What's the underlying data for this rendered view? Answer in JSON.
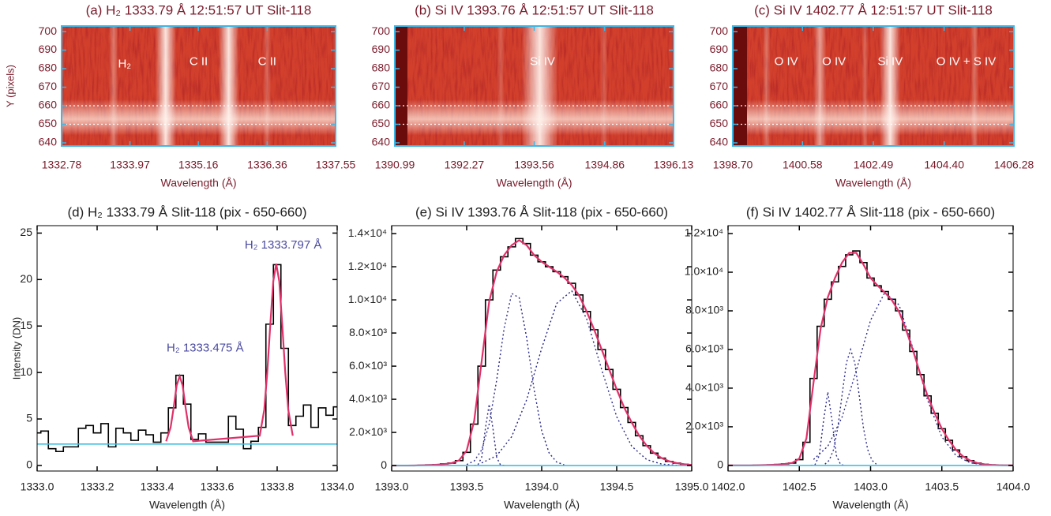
{
  "chart_data": [
    {
      "type": "spectrogram",
      "title": "(a) H₂ 1333.79 Å 12:51:57 UT Slit-118",
      "xlabel": "Wavelength (Å)",
      "ylabel": "Y (pixels)",
      "xlim": [
        1332.78,
        1337.55
      ],
      "xticks": [
        1332.78,
        1333.97,
        1335.16,
        1336.36,
        1337.55
      ],
      "ylim": [
        638.3,
        703
      ],
      "yticks": [
        640,
        650,
        660,
        670,
        680,
        690,
        700
      ],
      "hlines": [
        650,
        660
      ],
      "annotations": [
        "H₂",
        "C II",
        "C II"
      ]
    },
    {
      "type": "spectrogram",
      "title": "(b) Si IV 1393.76 Å 12:51:57 UT Slit-118",
      "xlabel": "Wavelength (Å)",
      "xlim": [
        1390.99,
        1396.13
      ],
      "xticks": [
        1390.99,
        1392.27,
        1393.56,
        1394.86,
        1396.13
      ],
      "ylim": [
        638.3,
        703
      ],
      "yticks": [
        640,
        650,
        660,
        670,
        680,
        690,
        700
      ],
      "hlines": [
        650,
        660
      ],
      "annotations": [
        "Si IV"
      ]
    },
    {
      "type": "spectrogram",
      "title": "(c) Si IV 1402.77 Å 12:51:57 UT Slit-118",
      "xlabel": "Wavelength (Å)",
      "xlim": [
        1398.7,
        1406.28
      ],
      "xticks": [
        {
          "value": 1398.7,
          "label": "1398.70"
        },
        1400.58,
        1402.49,
        {
          "value": 1404.4,
          "label": "1404.40"
        },
        1406.28
      ],
      "ylim": [
        638.3,
        703
      ],
      "yticks": [
        640,
        650,
        660,
        670,
        680,
        690,
        700
      ],
      "hlines": [
        650,
        660
      ],
      "annotations": [
        "O IV",
        "O IV",
        "Si IV",
        "O IV + S IV"
      ]
    },
    {
      "type": "line",
      "title": "(d) H₂ 1333.79 Å Slit-118 (pix - 650-660)",
      "xlabel": "Wavelength (Å)",
      "ylabel": "Intensity (DN)",
      "xlim": [
        1333.0,
        1334.0
      ],
      "xticks": [
        {
          "value": 1333,
          "label": "1333.0"
        },
        1333.2,
        1333.4,
        1333.6,
        1333.8,
        {
          "value": 1334,
          "label": "1334.0"
        }
      ],
      "ylim": [
        -0.6,
        25.8
      ],
      "yticks": [
        0,
        5,
        10,
        15,
        20,
        25
      ],
      "annotations": [
        "H₂ 1333.797 Å",
        "H₂ 1333.475 Å"
      ],
      "series": [
        {
          "style": "step",
          "color": "#000000",
          "x": [
            1333,
            1333.025,
            1333.05,
            1333.075,
            1333.1,
            1333.125,
            1333.15,
            1333.175,
            1333.2,
            1333.225,
            1333.25,
            1333.275,
            1333.3,
            1333.325,
            1333.35,
            1333.375,
            1333.4,
            1333.425,
            1333.45,
            1333.475,
            1333.5,
            1333.525,
            1333.55,
            1333.575,
            1333.6,
            1333.625,
            1333.65,
            1333.675,
            1333.7,
            1333.725,
            1333.75,
            1333.775,
            1333.8,
            1333.825,
            1333.85,
            1333.875,
            1333.9,
            1333.925,
            1333.95,
            1333.975,
            1334
          ],
          "values": [
            3.5,
            3.7,
            1.8,
            1.5,
            2.0,
            2.0,
            4.0,
            4.3,
            3.5,
            4.5,
            2.0,
            4.0,
            3.5,
            2.7,
            3.8,
            3.3,
            2.5,
            3.5,
            6.2,
            9.7,
            6.6,
            2.8,
            3.4,
            2.5,
            2.5,
            2.5,
            5.3,
            3.9,
            1.8,
            2.6,
            4.1,
            15.2,
            21.6,
            12.6,
            4.3,
            5.3,
            6.5,
            4.1,
            6.2,
            5.4,
            6.3
          ]
        },
        {
          "style": "solid",
          "color": "#e0306a",
          "x": [
            1333.43,
            1333.445,
            1333.455,
            1333.465,
            1333.475,
            1333.485,
            1333.495,
            1333.505,
            1333.52,
            1333.742,
            1333.757,
            1333.767,
            1333.777,
            1333.787,
            1333.797,
            1333.807,
            1333.817,
            1333.827,
            1333.837,
            1333.852
          ],
          "values": [
            2.6,
            4.1,
            6.2,
            8.6,
            9.6,
            8.6,
            6.2,
            4.1,
            2.6,
            3.2,
            6.0,
            10.0,
            15.1,
            19.8,
            21.7,
            19.8,
            15.1,
            10.0,
            6.0,
            3.2
          ]
        },
        {
          "style": "solid",
          "color": "#3cc0e0",
          "x": [
            1333.0,
            1334.0
          ],
          "values": [
            2.3,
            2.3
          ]
        }
      ]
    },
    {
      "type": "line",
      "title": "(e) Si IV 1393.76 Å Slit-118 (pix - 650-660)",
      "xlabel": "Wavelength (Å)",
      "xlim": [
        1393.0,
        1395.0
      ],
      "xticks": [
        {
          "value": 1393,
          "label": "1393.0"
        },
        1393.5,
        {
          "value": 1394,
          "label": "1394.0"
        },
        1394.5,
        {
          "value": 1395,
          "label": "1395.0"
        }
      ],
      "ylim": [
        -330,
        14480
      ],
      "yticks": [
        0,
        {
          "value": 2000,
          "label": "2.0×10³"
        },
        {
          "value": 4000,
          "label": "4.0×10³"
        },
        {
          "value": 6000,
          "label": "6.0×10³"
        },
        {
          "value": 8000,
          "label": "8.0×10³"
        },
        {
          "value": 10000,
          "label": "1.0×10⁴"
        },
        {
          "value": 12000,
          "label": "1.2×10⁴"
        },
        {
          "value": 14000,
          "label": "1.4×10⁴"
        }
      ],
      "series": [
        {
          "style": "step",
          "color": "#000000",
          "x": [
            1393,
            1393.05,
            1393.1,
            1393.15,
            1393.2,
            1393.25,
            1393.3,
            1393.35,
            1393.4,
            1393.45,
            1393.5,
            1393.55,
            1393.6,
            1393.65,
            1393.7,
            1393.75,
            1393.8,
            1393.85,
            1393.9,
            1393.95,
            1394,
            1394.05,
            1394.1,
            1394.15,
            1394.2,
            1394.25,
            1394.3,
            1394.35,
            1394.4,
            1394.45,
            1394.5,
            1394.55,
            1394.6,
            1394.65,
            1394.7,
            1394.75,
            1394.8,
            1394.85,
            1394.9,
            1394.95,
            1395
          ],
          "values": [
            0,
            0,
            0,
            10,
            20,
            40,
            60,
            100,
            150,
            300,
            800,
            2500,
            6000,
            10000,
            11800,
            12600,
            13200,
            13700,
            13400,
            12700,
            12300,
            12000,
            11700,
            11400,
            11000,
            10300,
            9300,
            8200,
            7000,
            5800,
            4600,
            3500,
            2600,
            1800,
            1200,
            750,
            450,
            250,
            150,
            80,
            50
          ]
        },
        {
          "style": "dotted",
          "color": "#2a2a8a",
          "x": [
            1393.55,
            1393.575,
            1393.6,
            1393.625,
            1393.65,
            1393.675,
            1393.7,
            1393.725,
            1393.75
          ],
          "values": [
            1,
            41,
            500,
            2245,
            3700,
            2245,
            500,
            41,
            1
          ]
        },
        {
          "style": "dotted",
          "color": "#2a2a8a",
          "x": [
            1393.5,
            1393.55,
            1393.6,
            1393.65,
            1393.7,
            1393.75,
            1393.8,
            1393.85,
            1393.9,
            1393.95,
            1394.0,
            1394.05,
            1394.1,
            1394.15
          ],
          "values": [
            64,
            276,
            943,
            2500,
            5165,
            8300,
            10390,
            10130,
            7700,
            4560,
            2100,
            750,
            210,
            46
          ]
        },
        {
          "style": "dotted",
          "color": "#2a2a8a",
          "x": [
            1393.6,
            1393.7,
            1393.8,
            1393.9,
            1394.0,
            1394.1,
            1394.2,
            1394.3,
            1394.4,
            1394.5,
            1394.6,
            1394.7,
            1394.8,
            1394.9
          ],
          "values": [
            158,
            597,
            1742,
            3978,
            7075,
            9784,
            10547,
            8855,
            5789,
            2945,
            1170,
            359,
            87,
            17
          ]
        },
        {
          "style": "solid",
          "color": "#e0306a",
          "x": [
            1393,
            1393.05,
            1393.1,
            1393.15,
            1393.2,
            1393.25,
            1393.3,
            1393.35,
            1393.4,
            1393.45,
            1393.5,
            1393.55,
            1393.6,
            1393.65,
            1393.7,
            1393.75,
            1393.8,
            1393.85,
            1393.9,
            1393.95,
            1394,
            1394.05,
            1394.1,
            1394.15,
            1394.2,
            1394.25,
            1394.3,
            1394.35,
            1394.4,
            1394.45,
            1394.5,
            1394.55,
            1394.6,
            1394.65,
            1394.7,
            1394.75,
            1394.8,
            1394.85,
            1394.9,
            1394.95,
            1395
          ],
          "values": [
            0,
            0,
            0,
            5,
            15,
            30,
            55,
            90,
            150,
            320,
            900,
            2700,
            6300,
            9900,
            11700,
            12700,
            13300,
            13600,
            13300,
            12700,
            12300,
            12000,
            11700,
            11350,
            10900,
            10250,
            9300,
            8200,
            7000,
            5800,
            4600,
            3500,
            2600,
            1800,
            1200,
            750,
            450,
            260,
            150,
            80,
            40
          ]
        },
        {
          "style": "solid",
          "color": "#3cc0e0",
          "x": [
            1393.0,
            1395.0
          ],
          "values": [
            0,
            0
          ]
        }
      ]
    },
    {
      "type": "line",
      "title": "(f) Si IV 1402.77 Å Slit-118 (pix - 650-660)",
      "xlabel": "Wavelength (Å)",
      "xlim": [
        1402.0,
        1404.0
      ],
      "xticks": [
        {
          "value": 1402,
          "label": "1402.0"
        },
        1402.5,
        {
          "value": 1403,
          "label": "1403.0"
        },
        1403.5,
        {
          "value": 1404,
          "label": "1404.0"
        }
      ],
      "ylim": [
        -290,
        12410
      ],
      "yticks": [
        0,
        {
          "value": 2000,
          "label": "2.0×10³"
        },
        {
          "value": 4000,
          "label": "4.0×10³"
        },
        {
          "value": 6000,
          "label": "6.0×10³"
        },
        {
          "value": 8000,
          "label": "8.0×10³"
        },
        {
          "value": 10000,
          "label": "1.0×10⁴"
        },
        {
          "value": 12000,
          "label": "1.2×10⁴"
        }
      ],
      "series": [
        {
          "style": "step",
          "color": "#000000",
          "x": [
            1402,
            1402.05,
            1402.1,
            1402.15,
            1402.2,
            1402.25,
            1402.3,
            1402.35,
            1402.4,
            1402.45,
            1402.5,
            1402.55,
            1402.6,
            1402.65,
            1402.7,
            1402.75,
            1402.8,
            1402.85,
            1402.9,
            1402.95,
            1403,
            1403.05,
            1403.1,
            1403.15,
            1403.2,
            1403.25,
            1403.3,
            1403.35,
            1403.4,
            1403.45,
            1403.5,
            1403.55,
            1403.6,
            1403.65,
            1403.7,
            1403.75,
            1403.8,
            1403.85,
            1403.9,
            1403.95,
            1404
          ],
          "values": [
            0,
            0,
            0,
            0,
            10,
            20,
            30,
            50,
            80,
            120,
            300,
            1200,
            4500,
            7200,
            8600,
            9500,
            10300,
            10900,
            11100,
            10500,
            9700,
            9300,
            9000,
            8600,
            8000,
            7000,
            5900,
            4700,
            3600,
            2700,
            1900,
            1300,
            800,
            450,
            250,
            120,
            60,
            30,
            10,
            5,
            0
          ]
        },
        {
          "style": "dotted",
          "color": "#2a2a8a",
          "x": [
            1402.58,
            1402.61,
            1402.64,
            1402.67,
            1402.7,
            1402.73,
            1402.76,
            1402.79,
            1402.82
          ],
          "values": [
            1,
            42,
            514,
            2306,
            3800,
            2306,
            514,
            42,
            1
          ]
        },
        {
          "style": "dotted",
          "color": "#2a2a8a",
          "x": [
            1402.68,
            1402.71,
            1402.74,
            1402.77,
            1402.8,
            1402.83,
            1402.86,
            1402.89,
            1402.92,
            1402.95,
            1402.98,
            1403.01,
            1403.04
          ],
          "values": [
            67,
            264,
            812,
            1948,
            3639,
            5295,
            6000,
            5295,
            3639,
            1948,
            812,
            264,
            67
          ]
        },
        {
          "style": "dotted",
          "color": "#2a2a8a",
          "x": [
            1402.6,
            1402.7,
            1402.8,
            1402.9,
            1403.0,
            1403.1,
            1403.2,
            1403.3,
            1403.4,
            1403.5,
            1403.6,
            1403.7,
            1403.8
          ],
          "values": [
            306,
            992,
            2500,
            4915,
            7516,
            8955,
            8307,
            6003,
            3377,
            1479,
            506,
            134,
            28
          ]
        },
        {
          "style": "solid",
          "color": "#e0306a",
          "x": [
            1402,
            1402.05,
            1402.1,
            1402.15,
            1402.2,
            1402.25,
            1402.3,
            1402.35,
            1402.4,
            1402.45,
            1402.5,
            1402.55,
            1402.6,
            1402.65,
            1402.7,
            1402.75,
            1402.8,
            1402.85,
            1402.9,
            1402.95,
            1403,
            1403.05,
            1403.1,
            1403.15,
            1403.2,
            1403.25,
            1403.3,
            1403.35,
            1403.4,
            1403.45,
            1403.5,
            1403.55,
            1403.6,
            1403.65,
            1403.7,
            1403.75,
            1403.8,
            1403.85,
            1403.9,
            1403.95,
            1404
          ],
          "values": [
            0,
            0,
            0,
            0,
            5,
            15,
            30,
            50,
            80,
            130,
            350,
            1400,
            4300,
            7100,
            8700,
            9700,
            10500,
            11000,
            11000,
            10400,
            9700,
            9300,
            8950,
            8550,
            7950,
            7000,
            5900,
            4700,
            3600,
            2700,
            1900,
            1300,
            800,
            460,
            250,
            120,
            60,
            30,
            10,
            5,
            0
          ]
        },
        {
          "style": "solid",
          "color": "#3cc0e0",
          "x": [
            1402.0,
            1404.0
          ],
          "values": [
            0,
            0
          ]
        }
      ]
    }
  ]
}
